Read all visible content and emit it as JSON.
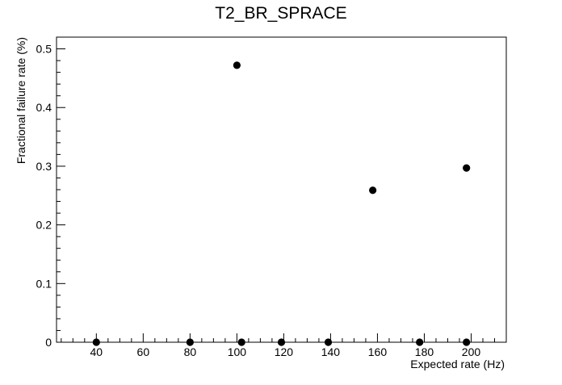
{
  "chart_data": {
    "type": "scatter",
    "title": "T2_BR_SPRACE",
    "xlabel": "Expected rate (Hz)",
    "ylabel": "Fractional failure rate (%)",
    "xlim": [
      23,
      215
    ],
    "ylim": [
      0,
      0.52
    ],
    "xticks": [
      40,
      60,
      80,
      100,
      120,
      140,
      160,
      180,
      200
    ],
    "yticks": [
      0,
      0.1,
      0.2,
      0.3,
      0.4,
      0.5
    ],
    "ytick_labels": [
      "0",
      "0.1",
      "0.2",
      "0.3",
      "0.4",
      "0.5"
    ],
    "grid": false,
    "legend": "none",
    "marker_color": "#000000",
    "points": [
      {
        "x": 40,
        "y": 0
      },
      {
        "x": 80,
        "y": 0
      },
      {
        "x": 100,
        "y": 0.472
      },
      {
        "x": 102,
        "y": 0
      },
      {
        "x": 119,
        "y": 0
      },
      {
        "x": 139,
        "y": 0
      },
      {
        "x": 158,
        "y": 0.259
      },
      {
        "x": 178,
        "y": 0
      },
      {
        "x": 198,
        "y": 0
      },
      {
        "x": 198,
        "y": 0.297
      }
    ]
  }
}
